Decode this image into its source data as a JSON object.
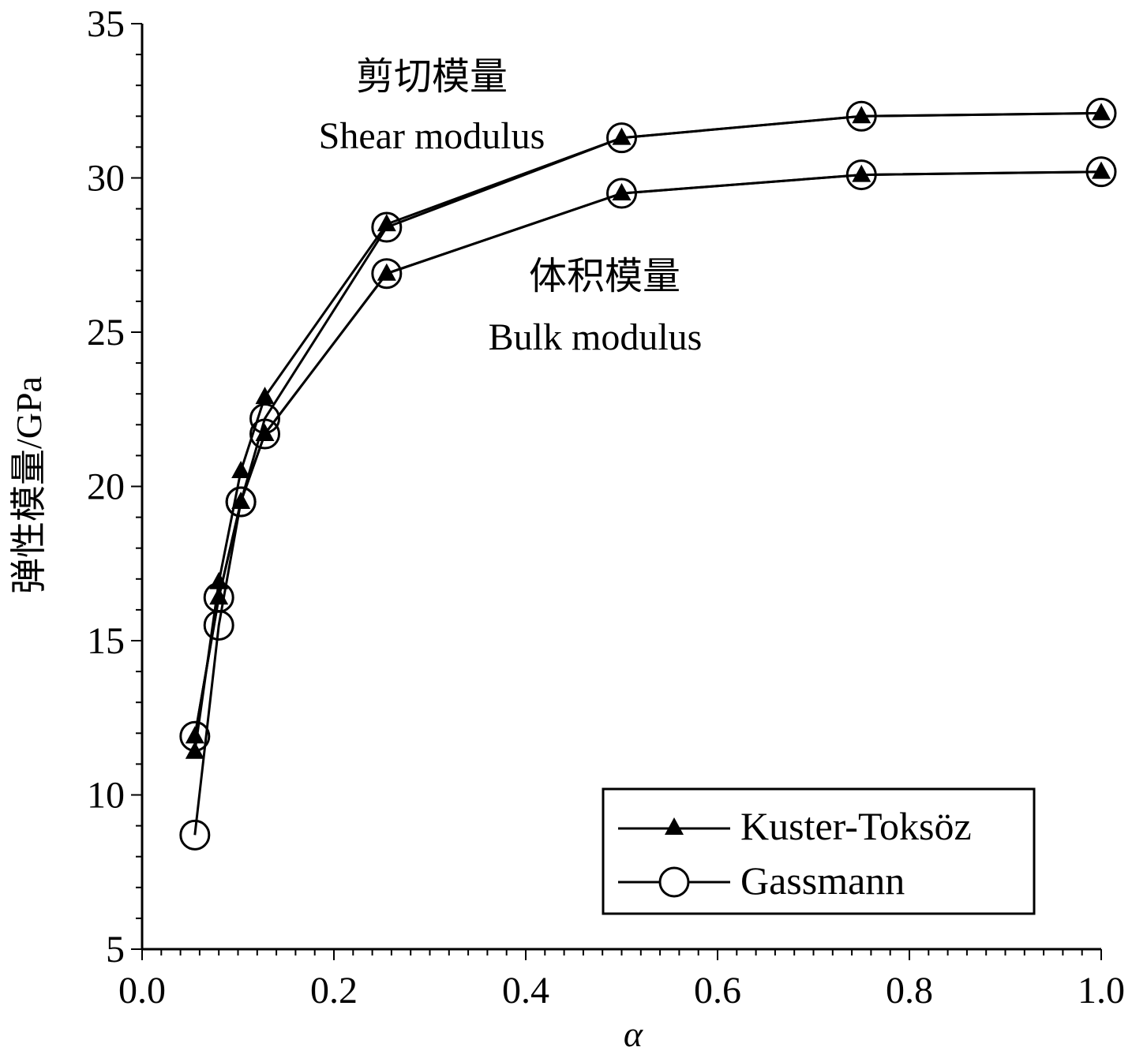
{
  "chart_data": {
    "type": "line",
    "xlabel": "α",
    "ylabel": "弹性模量/GPa",
    "xlim": [
      0.0,
      1.0
    ],
    "ylim": [
      5,
      35
    ],
    "x_ticks": [
      "0.0",
      "0.2",
      "0.4",
      "0.6",
      "0.8",
      "1.0"
    ],
    "y_ticks": [
      "5",
      "10",
      "15",
      "20",
      "25",
      "30",
      "35"
    ],
    "grid": false,
    "legend_position": "bottom-right",
    "annotations": {
      "shear_cn": "剪切模量",
      "shear_en": "Shear modulus",
      "bulk_cn": "体积模量",
      "bulk_en": "Bulk modulus"
    },
    "legend": [
      {
        "name": "Kuster-Toksöz",
        "marker": "filled-triangle"
      },
      {
        "name": "Gassmann",
        "marker": "open-circle"
      }
    ],
    "series": [
      {
        "name": "Kuster-Toksöz",
        "group": "shear",
        "marker": "filled-triangle",
        "x": [
          0.055,
          0.08,
          0.103,
          0.128,
          0.255,
          0.5,
          0.75,
          1.0
        ],
        "y": [
          11.4,
          16.9,
          20.5,
          22.9,
          28.5,
          31.3,
          32.0,
          32.1
        ]
      },
      {
        "name": "Gassmann",
        "group": "shear",
        "marker": "open-circle",
        "x": [
          0.055,
          0.08,
          0.103,
          0.128,
          0.255,
          0.5,
          0.75,
          1.0
        ],
        "y": [
          8.7,
          15.5,
          19.5,
          22.2,
          28.4,
          31.3,
          32.0,
          32.1
        ]
      },
      {
        "name": "Kuster-Toksöz",
        "group": "bulk",
        "marker": "filled-triangle",
        "x": [
          0.055,
          0.08,
          0.103,
          0.128,
          0.255,
          0.5,
          0.75,
          1.0
        ],
        "y": [
          11.9,
          16.4,
          19.5,
          21.7,
          26.9,
          29.5,
          30.1,
          30.2
        ]
      },
      {
        "name": "Gassmann",
        "group": "bulk",
        "marker": "open-circle",
        "x": [
          0.055,
          0.08,
          0.103,
          0.128,
          0.255,
          0.5,
          0.75,
          1.0
        ],
        "y": [
          11.9,
          16.4,
          19.5,
          21.7,
          26.9,
          29.5,
          30.1,
          30.2
        ]
      }
    ]
  }
}
